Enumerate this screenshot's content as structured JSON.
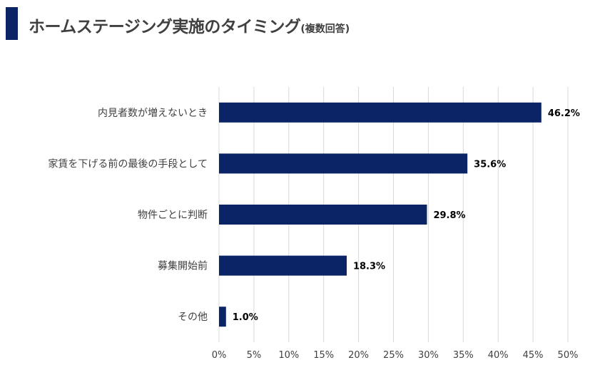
{
  "title": {
    "main": "ホームステージング実施のタイミング",
    "sub": "(複数回答)"
  },
  "colors": {
    "bar": "#0b2466",
    "grid": "#d9d9d9",
    "text": "#404040",
    "label": "#000000"
  },
  "chart_data": {
    "type": "bar",
    "orientation": "horizontal",
    "title": "ホームステージング実施のタイミング(複数回答)",
    "categories": [
      "内見者数が増えないとき",
      "家賃を下げる前の最後の手段として",
      "物件ごとに判断",
      "募集開始前",
      "その他"
    ],
    "values": [
      46.2,
      35.6,
      29.8,
      18.3,
      1.0
    ],
    "value_labels": [
      "46.2%",
      "35.6%",
      "29.8%",
      "18.3%",
      "1.0%"
    ],
    "xlim": [
      0,
      50
    ],
    "xticks": [
      "0%",
      "5%",
      "10%",
      "15%",
      "20%",
      "25%",
      "30%",
      "35%",
      "40%",
      "45%",
      "50%"
    ],
    "xlabel": "",
    "ylabel": "",
    "grid": true,
    "legend": "none"
  }
}
